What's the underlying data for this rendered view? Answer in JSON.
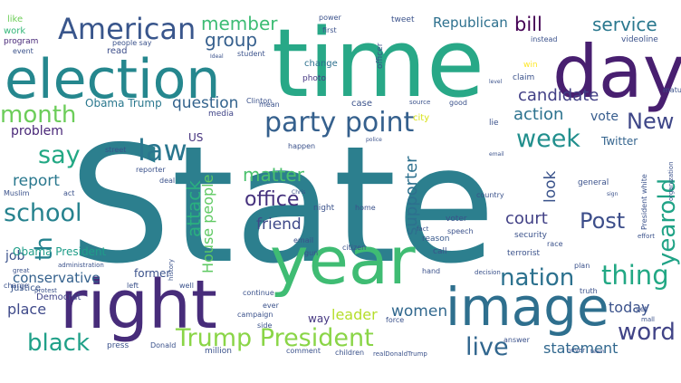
{
  "words": [
    {
      "text": "State",
      "color": "#2c7f8e",
      "vertical": false
    },
    {
      "text": "time",
      "color": "#28a887",
      "vertical": false
    },
    {
      "text": "election",
      "color": "#25878e",
      "vertical": false
    },
    {
      "text": "day",
      "color": "#481f70",
      "vertical": false
    },
    {
      "text": "year",
      "color": "#3fbc73",
      "vertical": false
    },
    {
      "text": "right",
      "color": "#472c7a",
      "vertical": false
    },
    {
      "text": "image",
      "color": "#2e6f8e",
      "vertical": false
    },
    {
      "text": "American",
      "color": "#39568c",
      "vertical": false
    },
    {
      "text": "law",
      "color": "#2a768e",
      "vertical": false
    },
    {
      "text": "school",
      "color": "#26828e",
      "vertical": false
    },
    {
      "text": "black",
      "color": "#1fa088",
      "vertical": false
    },
    {
      "text": "Trump President",
      "color": "#8ad547",
      "vertical": false
    },
    {
      "text": "party point",
      "color": "#35608d",
      "vertical": false
    },
    {
      "text": "nation",
      "color": "#2c718e",
      "vertical": false
    },
    {
      "text": "thing",
      "color": "#22a884",
      "vertical": false
    },
    {
      "text": "word",
      "color": "#414487",
      "vertical": false
    },
    {
      "text": "live",
      "color": "#31668e",
      "vertical": false
    },
    {
      "text": "month",
      "color": "#6ccd5a",
      "vertical": false
    },
    {
      "text": "say",
      "color": "#22a884",
      "vertical": false
    },
    {
      "text": "week",
      "color": "#218f8d",
      "vertical": false
    },
    {
      "text": "New",
      "color": "#3f4788",
      "vertical": false
    },
    {
      "text": "Post",
      "color": "#3d4e8a",
      "vertical": false
    },
    {
      "text": "member",
      "color": "#3dbc74",
      "vertical": false
    },
    {
      "text": "group",
      "color": "#355f8d",
      "vertical": false
    },
    {
      "text": "bill",
      "color": "#440154",
      "vertical": false
    },
    {
      "text": "service",
      "color": "#2a788e",
      "vertical": false
    },
    {
      "text": "Republican",
      "color": "#2d708e",
      "vertical": false
    },
    {
      "text": "candidate",
      "color": "#424086",
      "vertical": false
    },
    {
      "text": "action",
      "color": "#2c728e",
      "vertical": false
    },
    {
      "text": "question",
      "color": "#33638d",
      "vertical": false
    },
    {
      "text": "office",
      "color": "#46327e",
      "vertical": false
    },
    {
      "text": "matter",
      "color": "#4ac16d",
      "vertical": false
    },
    {
      "text": "friend",
      "color": "#3e4989",
      "vertical": false
    },
    {
      "text": "court",
      "color": "#424186",
      "vertical": false
    },
    {
      "text": "report",
      "color": "#2a788e",
      "vertical": false
    },
    {
      "text": "problem",
      "color": "#482677",
      "vertical": false
    },
    {
      "text": "conservative",
      "color": "#34618d",
      "vertical": false
    },
    {
      "text": "place",
      "color": "#3f4a8a",
      "vertical": false
    },
    {
      "text": "women",
      "color": "#31688e",
      "vertical": false
    },
    {
      "text": "today",
      "color": "#3b528b",
      "vertical": false
    },
    {
      "text": "statement",
      "color": "#31688e",
      "vertical": false
    },
    {
      "text": "leader",
      "color": "#b5de2b",
      "vertical": false
    },
    {
      "text": "vote",
      "color": "#365c8d",
      "vertical": false
    },
    {
      "text": "US",
      "color": "#46337e",
      "vertical": false
    },
    {
      "text": "job",
      "color": "#3b528b",
      "vertical": false
    },
    {
      "text": "Obama Trump",
      "color": "#2a788e",
      "vertical": false
    },
    {
      "text": "Obama President",
      "color": "#1f9e89",
      "vertical": false
    },
    {
      "text": "Twitter",
      "color": "#33638d",
      "vertical": false
    },
    {
      "text": "former",
      "color": "#3b528b",
      "vertical": false
    },
    {
      "text": "way",
      "color": "#453781",
      "vertical": false
    },
    {
      "text": "Democrat",
      "color": "#404588",
      "vertical": false
    },
    {
      "text": "Justice",
      "color": "#39568c",
      "vertical": false
    },
    {
      "text": "attack",
      "color": "#2ab07f",
      "vertical": true
    },
    {
      "text": "House people",
      "color": "#5ec962",
      "vertical": true
    },
    {
      "text": "supporter",
      "color": "#2d708e",
      "vertical": true
    },
    {
      "text": "look",
      "color": "#3a538b",
      "vertical": true
    },
    {
      "text": "yearold",
      "color": "#20a386",
      "vertical": true
    },
    {
      "text": "th",
      "color": "#25838e",
      "vertical": true
    },
    {
      "text": "like",
      "color": "#6ece58",
      "vertical": false
    },
    {
      "text": "work",
      "color": "#35b779",
      "vertical": false
    },
    {
      "text": "program",
      "color": "#482878",
      "vertical": false
    },
    {
      "text": "read",
      "color": "#3d4e8a",
      "vertical": false
    },
    {
      "text": "change",
      "color": "#2d708e",
      "vertical": false
    },
    {
      "text": "photo",
      "color": "#453882",
      "vertical": false
    },
    {
      "text": "media",
      "color": "#404588",
      "vertical": false
    },
    {
      "text": "case",
      "color": "#3b528b",
      "vertical": false
    },
    {
      "text": "city",
      "color": "#d8e219",
      "vertical": false
    },
    {
      "text": "reason",
      "color": "#38598c",
      "vertical": false
    },
    {
      "text": "call",
      "color": "#3b528b",
      "vertical": false
    },
    {
      "text": "win",
      "color": "#fde725",
      "vertical": false
    },
    {
      "text": "claim",
      "color": "#3b528b",
      "vertical": false
    },
    {
      "text": "tweet",
      "color": "#3b528b",
      "vertical": false
    },
    {
      "text": "power",
      "color": "#3b528b",
      "vertical": false
    },
    {
      "text": "first",
      "color": "#3b528b",
      "vertical": false
    },
    {
      "text": "instead",
      "color": "#3b528b",
      "vertical": false
    },
    {
      "text": "videoline",
      "color": "#3b528b",
      "vertical": false
    },
    {
      "text": "good",
      "color": "#3b528b",
      "vertical": false
    },
    {
      "text": "lie",
      "color": "#3b528b",
      "vertical": false
    },
    {
      "text": "student",
      "color": "#3b528b",
      "vertical": false
    },
    {
      "text": "event",
      "color": "#3b528b",
      "vertical": false
    },
    {
      "text": "street",
      "color": "#3b528b",
      "vertical": false
    },
    {
      "text": "reporter",
      "color": "#3b528b",
      "vertical": false
    },
    {
      "text": "deal",
      "color": "#3b528b",
      "vertical": false
    },
    {
      "text": "Muslim",
      "color": "#3b528b",
      "vertical": false
    },
    {
      "text": "act",
      "color": "#3b528b",
      "vertical": false
    },
    {
      "text": "night",
      "color": "#3b528b",
      "vertical": false
    },
    {
      "text": "home",
      "color": "#3b528b",
      "vertical": false
    },
    {
      "text": "voter",
      "color": "#3b528b",
      "vertical": false
    },
    {
      "text": "speech",
      "color": "#3b528b",
      "vertical": false
    },
    {
      "text": "country",
      "color": "#3b528b",
      "vertical": false
    },
    {
      "text": "general",
      "color": "#3b528b",
      "vertical": false
    },
    {
      "text": "left",
      "color": "#3b528b",
      "vertical": false
    },
    {
      "text": "email",
      "color": "#3b528b",
      "vertical": false
    },
    {
      "text": "gun",
      "color": "#3b528b",
      "vertical": false
    },
    {
      "text": "citizen",
      "color": "#3b528b",
      "vertical": false
    },
    {
      "text": "security",
      "color": "#3b528b",
      "vertical": false
    },
    {
      "text": "race",
      "color": "#3b528b",
      "vertical": false
    },
    {
      "text": "terrorist",
      "color": "#3b528b",
      "vertical": false
    },
    {
      "text": "plan",
      "color": "#3b528b",
      "vertical": false
    },
    {
      "text": "truth",
      "color": "#3b528b",
      "vertical": false
    },
    {
      "text": "hand",
      "color": "#3b528b",
      "vertical": false
    },
    {
      "text": "force",
      "color": "#3b528b",
      "vertical": false
    },
    {
      "text": "continue",
      "color": "#3b528b",
      "vertical": false
    },
    {
      "text": "campaign",
      "color": "#3b528b",
      "vertical": false
    },
    {
      "text": "ever",
      "color": "#3b528b",
      "vertical": false
    },
    {
      "text": "side",
      "color": "#3b528b",
      "vertical": false
    },
    {
      "text": "press",
      "color": "#3b528b",
      "vertical": false
    },
    {
      "text": "Donald",
      "color": "#3b528b",
      "vertical": false
    },
    {
      "text": "million",
      "color": "#3b528b",
      "vertical": false
    },
    {
      "text": "comment",
      "color": "#3b528b",
      "vertical": false
    },
    {
      "text": "children",
      "color": "#3b528b",
      "vertical": false
    },
    {
      "text": "answer",
      "color": "#3b528b",
      "vertical": false
    },
    {
      "text": "never",
      "color": "#3b528b",
      "vertical": false
    },
    {
      "text": "yet",
      "color": "#3b528b",
      "vertical": false
    },
    {
      "text": "mall",
      "color": "#3b528b",
      "vertical": false
    },
    {
      "text": "well",
      "color": "#3b528b",
      "vertical": false
    },
    {
      "text": "charge",
      "color": "#3b528b",
      "vertical": false
    },
    {
      "text": "protest",
      "color": "#3b528b",
      "vertical": false
    },
    {
      "text": "great",
      "color": "#3b528b",
      "vertical": false
    },
    {
      "text": "fact",
      "color": "#3b528b",
      "vertical": false
    },
    {
      "text": "people say",
      "color": "#3b528b",
      "vertical": false
    },
    {
      "text": "mean",
      "color": "#3b528b",
      "vertical": false
    },
    {
      "text": "happen",
      "color": "#3b528b",
      "vertical": false
    },
    {
      "text": "officer",
      "color": "#3b528b",
      "vertical": true
    },
    {
      "text": "source",
      "color": "#3b528b",
      "vertical": false
    },
    {
      "text": "administration",
      "color": "#3b528b",
      "vertical": false
    },
    {
      "text": "decision",
      "color": "#3b528b",
      "vertical": false
    },
    {
      "text": "effort",
      "color": "#3b528b",
      "vertical": false
    },
    {
      "text": "Clinton",
      "color": "#3b528b",
      "vertical": false
    },
    {
      "text": "history",
      "color": "#3b528b",
      "vertical": true
    },
    {
      "text": "President white",
      "color": "#3b528b",
      "vertical": true
    },
    {
      "text": "organization",
      "color": "#3b528b",
      "vertical": true
    },
    {
      "text": "realDonaldTrump",
      "color": "#3b528b",
      "vertical": false
    },
    {
      "text": "Ideal",
      "color": "#3b528b",
      "vertical": false
    },
    {
      "text": "email",
      "color": "#3b528b",
      "vertical": false
    },
    {
      "text": "Chris",
      "color": "#3b528b",
      "vertical": false
    },
    {
      "text": "level",
      "color": "#3b528b",
      "vertical": false
    },
    {
      "text": "police",
      "color": "#3b528b",
      "vertical": false
    },
    {
      "text": "team",
      "color": "#3b528b",
      "vertical": false
    },
    {
      "text": "sign",
      "color": "#3b528b",
      "vertical": false
    },
    {
      "text": "matu",
      "color": "#3b528b",
      "vertical": false
    }
  ]
}
